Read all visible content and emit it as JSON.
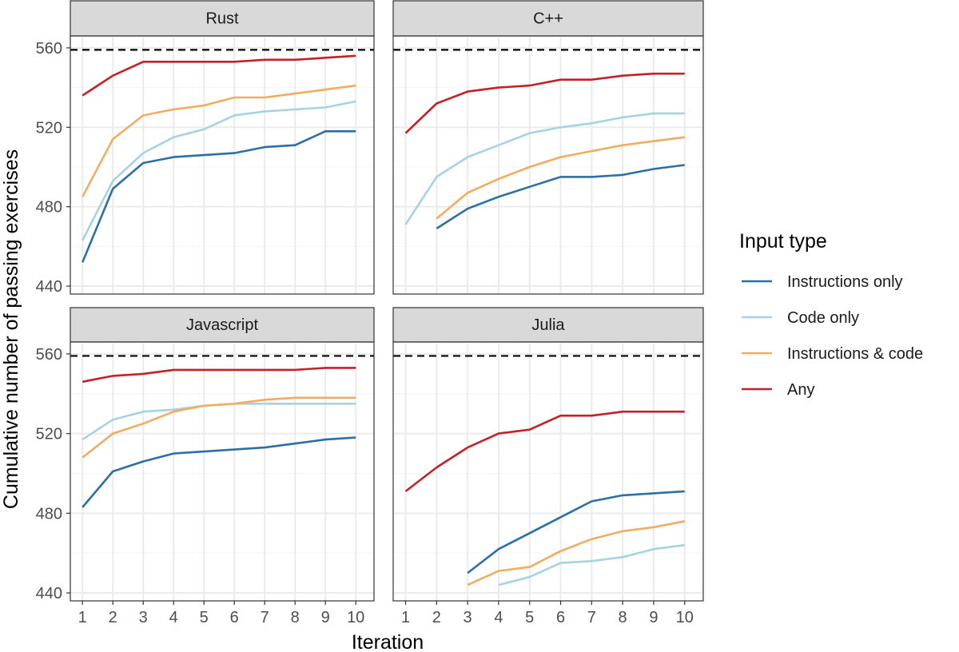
{
  "chart_data": {
    "type": "line",
    "x": [
      1,
      2,
      3,
      4,
      5,
      6,
      7,
      8,
      9,
      10
    ],
    "xlabel": "Iteration",
    "ylabel": "Cumulative number of passing exercises",
    "ylim": [
      436,
      566
    ],
    "xlim": [
      0.6,
      10.6
    ],
    "y_ticks": [
      440,
      480,
      520,
      560
    ],
    "x_ticks": [
      1,
      2,
      3,
      4,
      5,
      6,
      7,
      8,
      9,
      10
    ],
    "reference_line": 559,
    "grid": true,
    "legend": {
      "title": "Input type",
      "position": "right",
      "entries": [
        "Instructions only",
        "Code only",
        "Instructions & code",
        "Any"
      ]
    },
    "colors": {
      "Instructions only": "#2b6fa6",
      "Code only": "#a6d3e4",
      "Instructions & code": "#f1ad5f",
      "Any": "#c42127",
      "reference": "#000000",
      "strip": "#d9d9d9",
      "grid": "#ebebeb"
    },
    "panels": [
      {
        "name": "Rust",
        "series": [
          {
            "name": "Instructions only",
            "x": [
              1,
              2,
              3,
              4,
              5,
              6,
              7,
              8,
              9,
              10
            ],
            "values": [
              452,
              489,
              502,
              505,
              506,
              507,
              510,
              511,
              518,
              518
            ]
          },
          {
            "name": "Code only",
            "x": [
              1,
              2,
              3,
              4,
              5,
              6,
              7,
              8,
              9,
              10
            ],
            "values": [
              463,
              493,
              507,
              515,
              519,
              526,
              528,
              529,
              530,
              533
            ]
          },
          {
            "name": "Instructions & code",
            "x": [
              1,
              2,
              3,
              4,
              5,
              6,
              7,
              8,
              9,
              10
            ],
            "values": [
              485,
              514,
              526,
              529,
              531,
              535,
              535,
              537,
              539,
              541
            ]
          },
          {
            "name": "Any",
            "x": [
              1,
              2,
              3,
              4,
              5,
              6,
              7,
              8,
              9,
              10
            ],
            "values": [
              536,
              546,
              553,
              553,
              553,
              553,
              554,
              554,
              555,
              556
            ]
          }
        ]
      },
      {
        "name": "C++",
        "series": [
          {
            "name": "Instructions only",
            "x": [
              2,
              3,
              4,
              5,
              6,
              7,
              8,
              9,
              10
            ],
            "values": [
              469,
              479,
              485,
              490,
              495,
              495,
              496,
              499,
              501
            ]
          },
          {
            "name": "Code only",
            "x": [
              1,
              2,
              3,
              4,
              5,
              6,
              7,
              8,
              9,
              10
            ],
            "values": [
              471,
              495,
              505,
              511,
              517,
              520,
              522,
              525,
              527,
              527
            ]
          },
          {
            "name": "Instructions & code",
            "x": [
              2,
              3,
              4,
              5,
              6,
              7,
              8,
              9,
              10
            ],
            "values": [
              474,
              487,
              494,
              500,
              505,
              508,
              511,
              513,
              515
            ]
          },
          {
            "name": "Any",
            "x": [
              1,
              2,
              3,
              4,
              5,
              6,
              7,
              8,
              9,
              10
            ],
            "values": [
              517,
              532,
              538,
              540,
              541,
              544,
              544,
              546,
              547,
              547
            ]
          }
        ]
      },
      {
        "name": "Javascript",
        "series": [
          {
            "name": "Instructions only",
            "x": [
              1,
              2,
              3,
              4,
              5,
              6,
              7,
              8,
              9,
              10
            ],
            "values": [
              483,
              501,
              506,
              510,
              511,
              512,
              513,
              515,
              517,
              518
            ]
          },
          {
            "name": "Code only",
            "x": [
              1,
              2,
              3,
              4,
              5,
              6,
              7,
              8,
              9,
              10
            ],
            "values": [
              517,
              527,
              531,
              532,
              534,
              535,
              535,
              535,
              535,
              535
            ]
          },
          {
            "name": "Instructions & code",
            "x": [
              1,
              2,
              3,
              4,
              5,
              6,
              7,
              8,
              9,
              10
            ],
            "values": [
              508,
              520,
              525,
              531,
              534,
              535,
              537,
              538,
              538,
              538
            ]
          },
          {
            "name": "Any",
            "x": [
              1,
              2,
              3,
              4,
              5,
              6,
              7,
              8,
              9,
              10
            ],
            "values": [
              546,
              549,
              550,
              552,
              552,
              552,
              552,
              552,
              553,
              553
            ]
          }
        ]
      },
      {
        "name": "Julia",
        "series": [
          {
            "name": "Instructions only",
            "x": [
              3,
              4,
              5,
              6,
              7,
              8,
              9,
              10
            ],
            "values": [
              450,
              462,
              470,
              478,
              486,
              489,
              490,
              491
            ]
          },
          {
            "name": "Code only",
            "x": [
              4,
              5,
              6,
              7,
              8,
              9,
              10
            ],
            "values": [
              444,
              448,
              455,
              456,
              458,
              462,
              464
            ]
          },
          {
            "name": "Instructions & code",
            "x": [
              3,
              4,
              5,
              6,
              7,
              8,
              9,
              10
            ],
            "values": [
              444,
              451,
              453,
              461,
              467,
              471,
              473,
              476
            ]
          },
          {
            "name": "Any",
            "x": [
              1,
              2,
              3,
              4,
              5,
              6,
              7,
              8,
              9,
              10
            ],
            "values": [
              491,
              503,
              513,
              520,
              522,
              529,
              529,
              531,
              531,
              531
            ]
          }
        ]
      }
    ]
  }
}
